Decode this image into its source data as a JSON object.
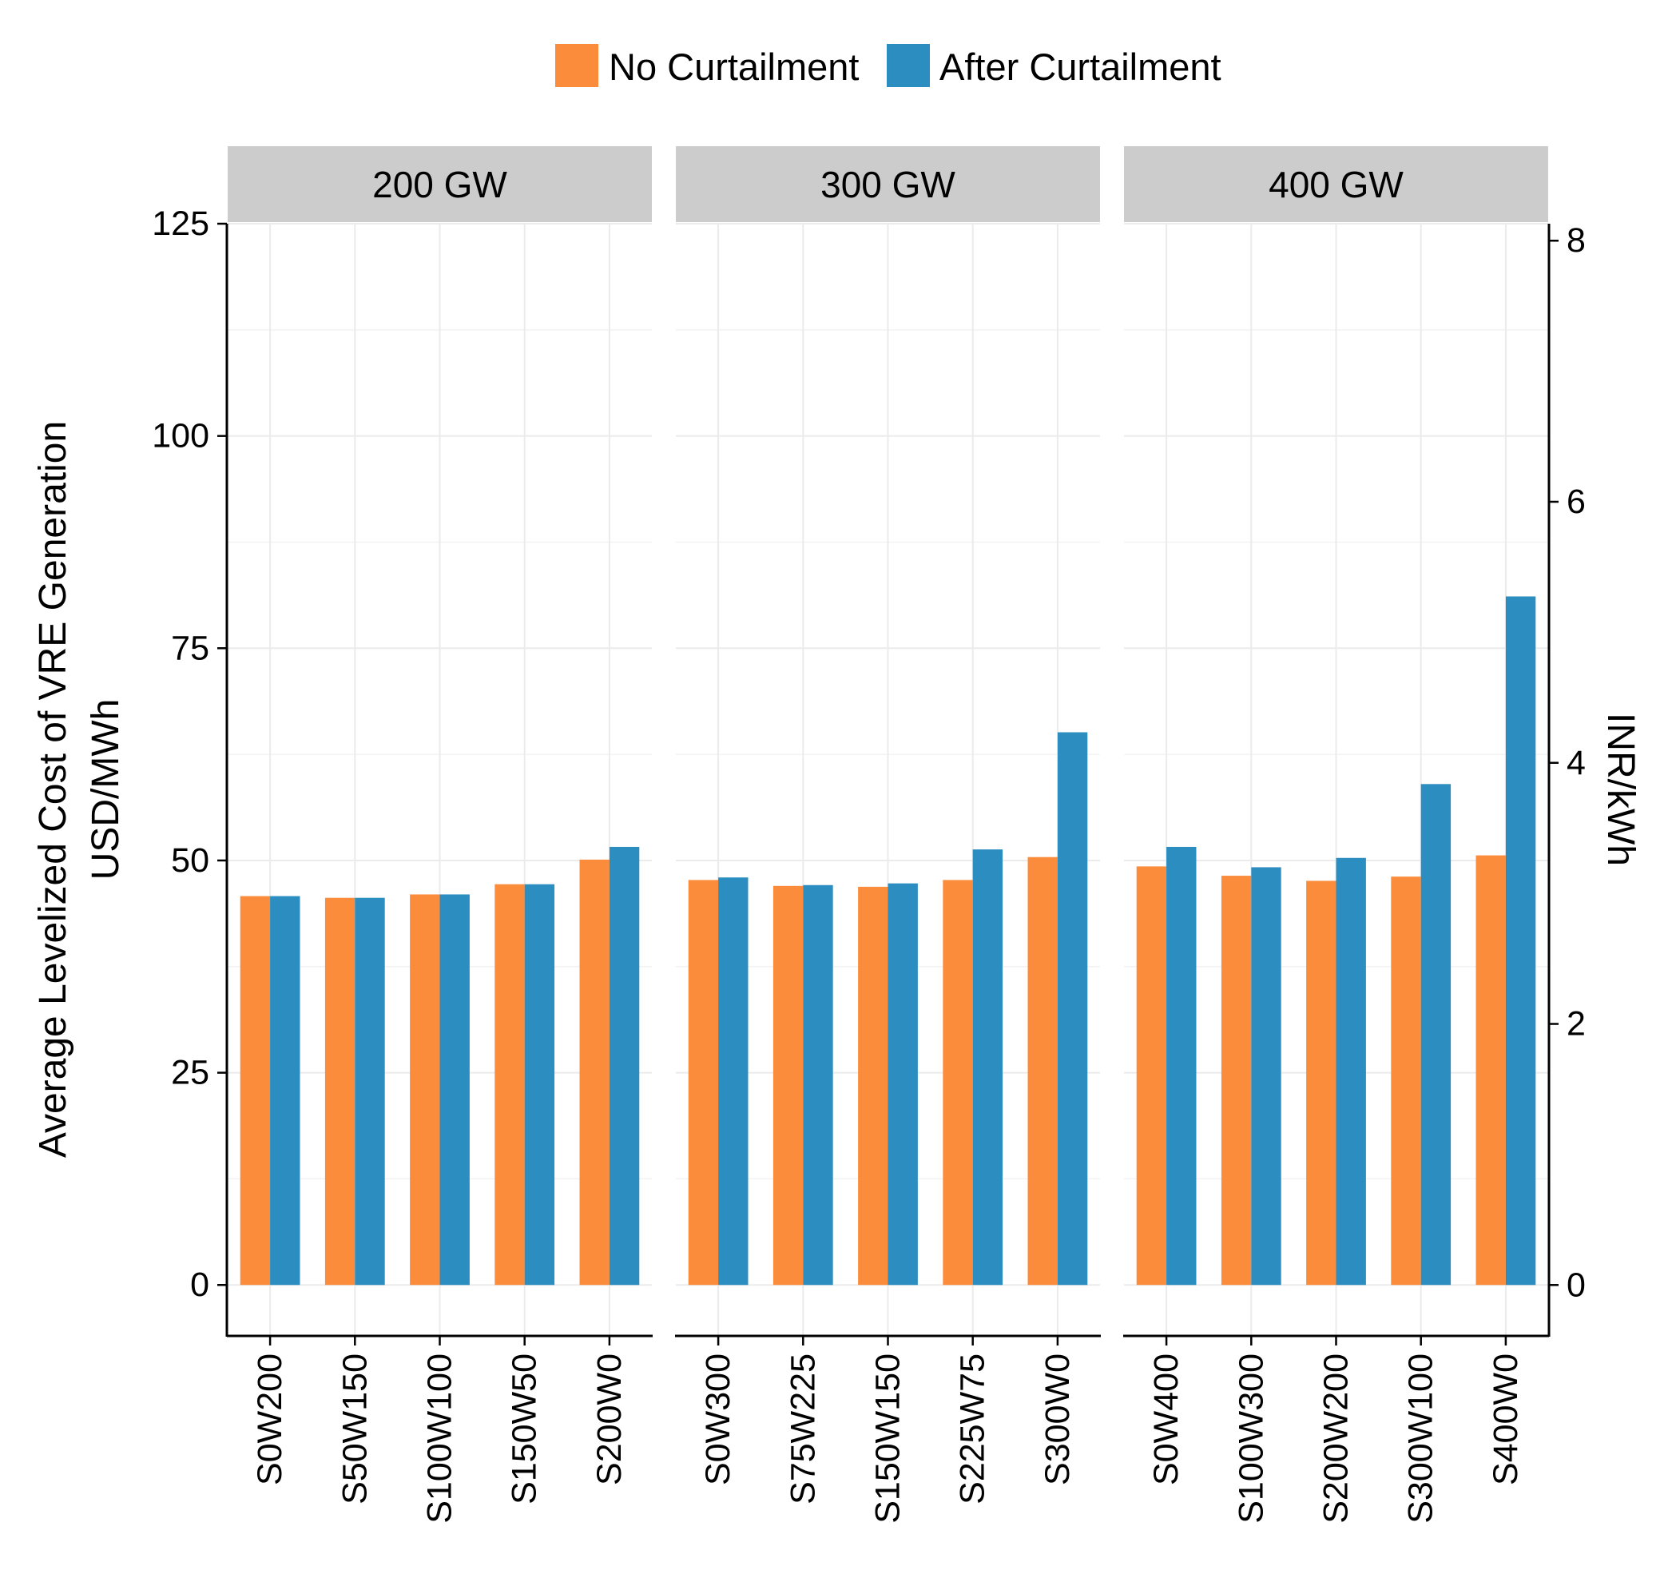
{
  "chart_data": {
    "type": "bar",
    "legend": {
      "position": "top",
      "entries": [
        {
          "name": "No Curtailment",
          "color": "#FB8C3C"
        },
        {
          "name": "After Curtailment",
          "color": "#2B8DC0"
        }
      ]
    },
    "y_axis_left": {
      "title_line1": "Average Levelized Cost of VRE Generation",
      "title_line2": "USD/MWh",
      "range": [
        -6,
        125
      ],
      "ticks": [
        0,
        25,
        50,
        75,
        100,
        125
      ],
      "tick_labels": [
        "0",
        "25",
        "50",
        "75",
        "100",
        "125"
      ]
    },
    "y_axis_right": {
      "title": "INR/kWh",
      "range": [
        -0.39,
        8.13
      ],
      "ticks": [
        0,
        2,
        4,
        6,
        8
      ],
      "tick_labels": [
        "0",
        "2",
        "4",
        "6",
        "8"
      ]
    },
    "grid": true,
    "panels": [
      {
        "label": "200 GW",
        "categories": [
          "S0W200",
          "S50W150",
          "S100W100",
          "S150W50",
          "S200W0"
        ],
        "series": [
          {
            "name": "No Curtailment",
            "values": [
              45.8,
              45.6,
              46.0,
              47.2,
              50.1
            ]
          },
          {
            "name": "After Curtailment",
            "values": [
              45.8,
              45.6,
              46.0,
              47.2,
              51.6
            ]
          }
        ]
      },
      {
        "label": "300 GW",
        "categories": [
          "S0W300",
          "S75W225",
          "S150W150",
          "S225W75",
          "S300W0"
        ],
        "series": [
          {
            "name": "No Curtailment",
            "values": [
              47.7,
              47.0,
              46.9,
              47.7,
              50.4
            ]
          },
          {
            "name": "After Curtailment",
            "values": [
              48.0,
              47.1,
              47.3,
              51.3,
              65.1
            ]
          }
        ]
      },
      {
        "label": "400 GW",
        "categories": [
          "S0W400",
          "S100W300",
          "S200W200",
          "S300W100",
          "S400W0"
        ],
        "series": [
          {
            "name": "No Curtailment",
            "values": [
              49.3,
              48.2,
              47.6,
              48.1,
              50.6
            ]
          },
          {
            "name": "After Curtailment",
            "values": [
              51.6,
              49.2,
              50.3,
              59.0,
              81.1
            ]
          }
        ]
      }
    ]
  }
}
